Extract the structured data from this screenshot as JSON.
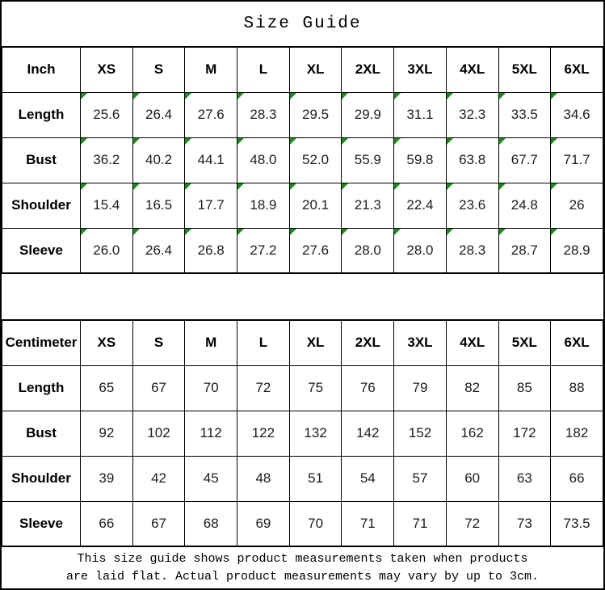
{
  "title": "Size Guide",
  "colors": {
    "border": "#000000",
    "note_marker_green": "#1a8c1a",
    "text": "#1c1c1c"
  },
  "inch_table": {
    "header": [
      "Inch",
      "XS",
      "S",
      "M",
      "L",
      "XL",
      "2XL",
      "3XL",
      "4XL",
      "5XL",
      "6XL"
    ],
    "rows": [
      {
        "label": "Length",
        "values": [
          "25.6",
          "26.4",
          "27.6",
          "28.3",
          "29.5",
          "29.9",
          "31.1",
          "32.3",
          "33.5",
          "34.6"
        ]
      },
      {
        "label": "Bust",
        "values": [
          "36.2",
          "40.2",
          "44.1",
          "48.0",
          "52.0",
          "55.9",
          "59.8",
          "63.8",
          "67.7",
          "71.7"
        ]
      },
      {
        "label": "Shoulder",
        "values": [
          "15.4",
          "16.5",
          "17.7",
          "18.9",
          "20.1",
          "21.3",
          "22.4",
          "23.6",
          "24.8",
          "26"
        ]
      },
      {
        "label": "Sleeve",
        "values": [
          "26.0",
          "26.4",
          "26.8",
          "27.2",
          "27.6",
          "28.0",
          "28.0",
          "28.3",
          "28.7",
          "28.9"
        ]
      }
    ]
  },
  "cm_table": {
    "header": [
      "Centimeter",
      "XS",
      "S",
      "M",
      "L",
      "XL",
      "2XL",
      "3XL",
      "4XL",
      "5XL",
      "6XL"
    ],
    "rows": [
      {
        "label": "Length",
        "values": [
          "65",
          "67",
          "70",
          "72",
          "75",
          "76",
          "79",
          "82",
          "85",
          "88"
        ]
      },
      {
        "label": "Bust",
        "values": [
          "92",
          "102",
          "112",
          "122",
          "132",
          "142",
          "152",
          "162",
          "172",
          "182"
        ]
      },
      {
        "label": "Shoulder",
        "values": [
          "39",
          "42",
          "45",
          "48",
          "51",
          "54",
          "57",
          "60",
          "63",
          "66"
        ]
      },
      {
        "label": "Sleeve",
        "values": [
          "66",
          "67",
          "68",
          "69",
          "70",
          "71",
          "71",
          "72",
          "73",
          "73.5"
        ]
      }
    ]
  },
  "footer": {
    "line1": "This size guide shows product measurements taken when products",
    "line2": "are laid flat. Actual product measurements may vary by up to 3cm."
  }
}
